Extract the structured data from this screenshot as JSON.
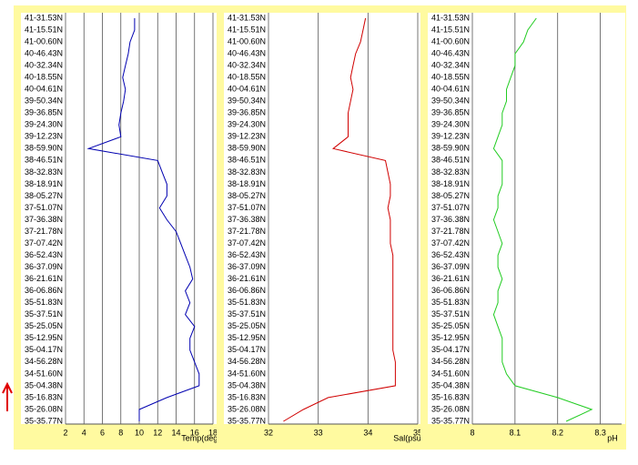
{
  "chart_data": [
    {
      "type": "line",
      "x_label": "Temp(degC)",
      "categories": [
        "41-31.53N",
        "41-15.51N",
        "41-00.60N",
        "40-46.43N",
        "40-32.34N",
        "40-18.55N",
        "40-04.61N",
        "39-50.34N",
        "39-36.85N",
        "39-24.30N",
        "39-12.23N",
        "38-59.90N",
        "38-46.51N",
        "38-32.83N",
        "38-18.91N",
        "38-05.27N",
        "37-51.07N",
        "37-36.38N",
        "37-21.78N",
        "37-07.42N",
        "36-52.43N",
        "36-37.09N",
        "36-21.61N",
        "36-06.86N",
        "35-51.83N",
        "35-37.51N",
        "35-25.05N",
        "35-12.95N",
        "35-04.17N",
        "34-56.28N",
        "34-51.60N",
        "35-04.38N",
        "35-16.83N",
        "35-26.08N",
        "35-35.77N"
      ],
      "series": [
        {
          "color": "#0000b0",
          "values": [
            9.5,
            9.5,
            9,
            8.8,
            8.5,
            8.2,
            8.5,
            8.3,
            8,
            7.8,
            8,
            4.5,
            12,
            12.5,
            13,
            13,
            12.2,
            13,
            14,
            14.5,
            15,
            15.5,
            15.8,
            15,
            15.5,
            15,
            16,
            15.5,
            15.5,
            16,
            16.5,
            16.5,
            13,
            10,
            10
          ]
        }
      ],
      "xlim": [
        2,
        18
      ],
      "xticks": [
        2,
        4,
        6,
        8,
        10,
        12,
        14,
        16,
        18
      ]
    },
    {
      "type": "line",
      "x_label": "Sal(psu)",
      "categories": [
        "41-31.53N",
        "41-15.51N",
        "41-00.60N",
        "40-46.43N",
        "40-32.34N",
        "40-18.55N",
        "40-04.61N",
        "39-50.34N",
        "39-36.85N",
        "39-24.30N",
        "39-12.23N",
        "38-59.90N",
        "38-46.51N",
        "38-32.83N",
        "38-18.91N",
        "38-05.27N",
        "37-51.07N",
        "37-36.38N",
        "37-21.78N",
        "37-07.42N",
        "36-52.43N",
        "36-37.09N",
        "36-21.61N",
        "36-06.86N",
        "35-51.83N",
        "35-37.51N",
        "35-25.05N",
        "35-12.95N",
        "35-04.17N",
        "34-56.28N",
        "34-51.60N",
        "35-04.38N",
        "35-16.83N",
        "35-26.08N",
        "35-35.77N"
      ],
      "series": [
        {
          "color": "#d00000",
          "values": [
            33.95,
            33.9,
            33.85,
            33.75,
            33.7,
            33.65,
            33.7,
            33.65,
            33.6,
            33.6,
            33.6,
            33.3,
            34.35,
            34.4,
            34.45,
            34.45,
            34.4,
            34.45,
            34.45,
            34.45,
            34.5,
            34.5,
            34.5,
            34.5,
            34.5,
            34.5,
            34.5,
            34.5,
            34.5,
            34.55,
            34.55,
            34.55,
            33.2,
            32.7,
            32.3
          ]
        }
      ],
      "xlim": [
        32,
        35
      ],
      "xticks": [
        32,
        33,
        34,
        35
      ]
    },
    {
      "type": "line",
      "x_label": "pH",
      "categories": [
        "41-31.53N",
        "41-15.51N",
        "41-00.60N",
        "40-46.43N",
        "40-32.34N",
        "40-18.55N",
        "40-04.61N",
        "39-50.34N",
        "39-36.85N",
        "39-24.30N",
        "39-12.23N",
        "38-59.90N",
        "38-46.51N",
        "38-32.83N",
        "38-18.91N",
        "38-05.27N",
        "37-51.07N",
        "37-36.38N",
        "37-21.78N",
        "37-07.42N",
        "36-52.43N",
        "36-37.09N",
        "36-21.61N",
        "36-06.86N",
        "35-51.83N",
        "35-37.51N",
        "35-25.05N",
        "35-12.95N",
        "35-04.17N",
        "34-56.28N",
        "34-51.60N",
        "35-04.38N",
        "35-16.83N",
        "35-26.08N",
        "35-35.77N"
      ],
      "series": [
        {
          "color": "#22cc22",
          "values": [
            8.15,
            8.13,
            8.12,
            8.1,
            8.1,
            8.09,
            8.08,
            8.08,
            8.07,
            8.07,
            8.06,
            8.05,
            8.07,
            8.07,
            8.07,
            8.06,
            8.06,
            8.05,
            8.06,
            8.07,
            8.06,
            8.06,
            8.07,
            8.06,
            8.06,
            8.05,
            8.06,
            8.07,
            8.07,
            8.07,
            8.08,
            8.1,
            8.2,
            8.28,
            8.22
          ]
        }
      ],
      "xlim": [
        8,
        8.35
      ],
      "xticks": [
        8,
        8.1,
        8.2,
        8.3
      ]
    }
  ]
}
